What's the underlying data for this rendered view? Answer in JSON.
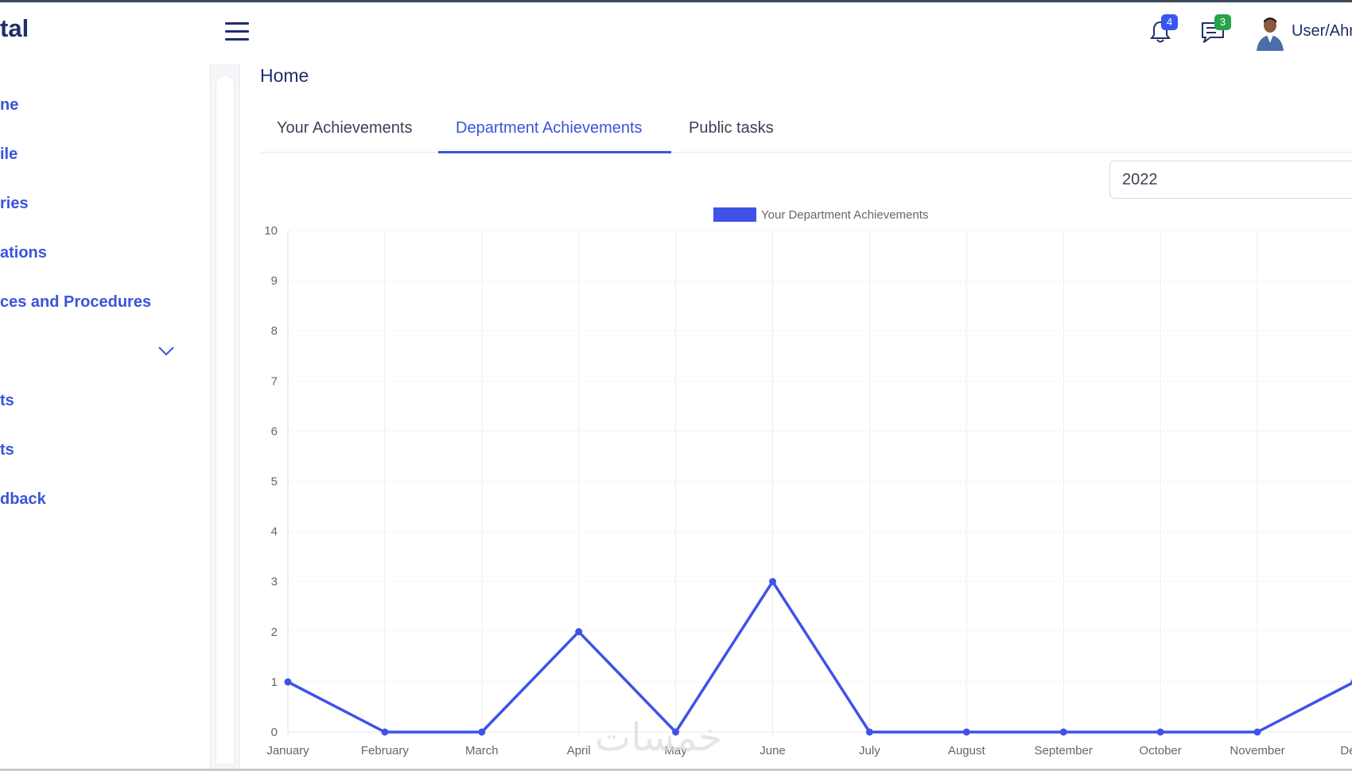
{
  "brand": {
    "title": "tal"
  },
  "sidebar": {
    "items": [
      {
        "label": "ne"
      },
      {
        "label": "ile"
      },
      {
        "label": "ries"
      },
      {
        "label": "ations"
      },
      {
        "label": "ces and Procedures"
      },
      {
        "label": "",
        "icon": "chevron-down-icon"
      },
      {
        "label": "ts"
      },
      {
        "label": "ts"
      },
      {
        "label": "dback"
      }
    ]
  },
  "header": {
    "notifications_count": "4",
    "messages_count": "3",
    "user_label": "User/Ahr"
  },
  "page": {
    "title": "Home"
  },
  "tabs": [
    {
      "label": "Your Achievements",
      "active": false
    },
    {
      "label": "Department Achievements",
      "active": true
    },
    {
      "label": "Public tasks",
      "active": false
    }
  ],
  "year_select": {
    "value": "2022"
  },
  "colors": {
    "accent": "#3a55d9",
    "line": "#3f52e8",
    "navy": "#1f2f6b"
  },
  "chart_data": {
    "type": "line",
    "title": "",
    "xlabel": "",
    "ylabel": "",
    "ylim": [
      0,
      10
    ],
    "y_ticks": [
      "0",
      "1",
      "2",
      "3",
      "4",
      "5",
      "6",
      "7",
      "8",
      "9",
      "10"
    ],
    "grid": true,
    "legend": "top-center",
    "categories": [
      "January",
      "February",
      "March",
      "April",
      "May",
      "June",
      "July",
      "August",
      "September",
      "October",
      "November",
      "Dece"
    ],
    "series": [
      {
        "name": "Your Department Achievements",
        "values": [
          1,
          0,
          0,
          2,
          0,
          3,
          0,
          0,
          0,
          0,
          0,
          1
        ]
      }
    ]
  },
  "watermark": {
    "text": "خمسات"
  }
}
